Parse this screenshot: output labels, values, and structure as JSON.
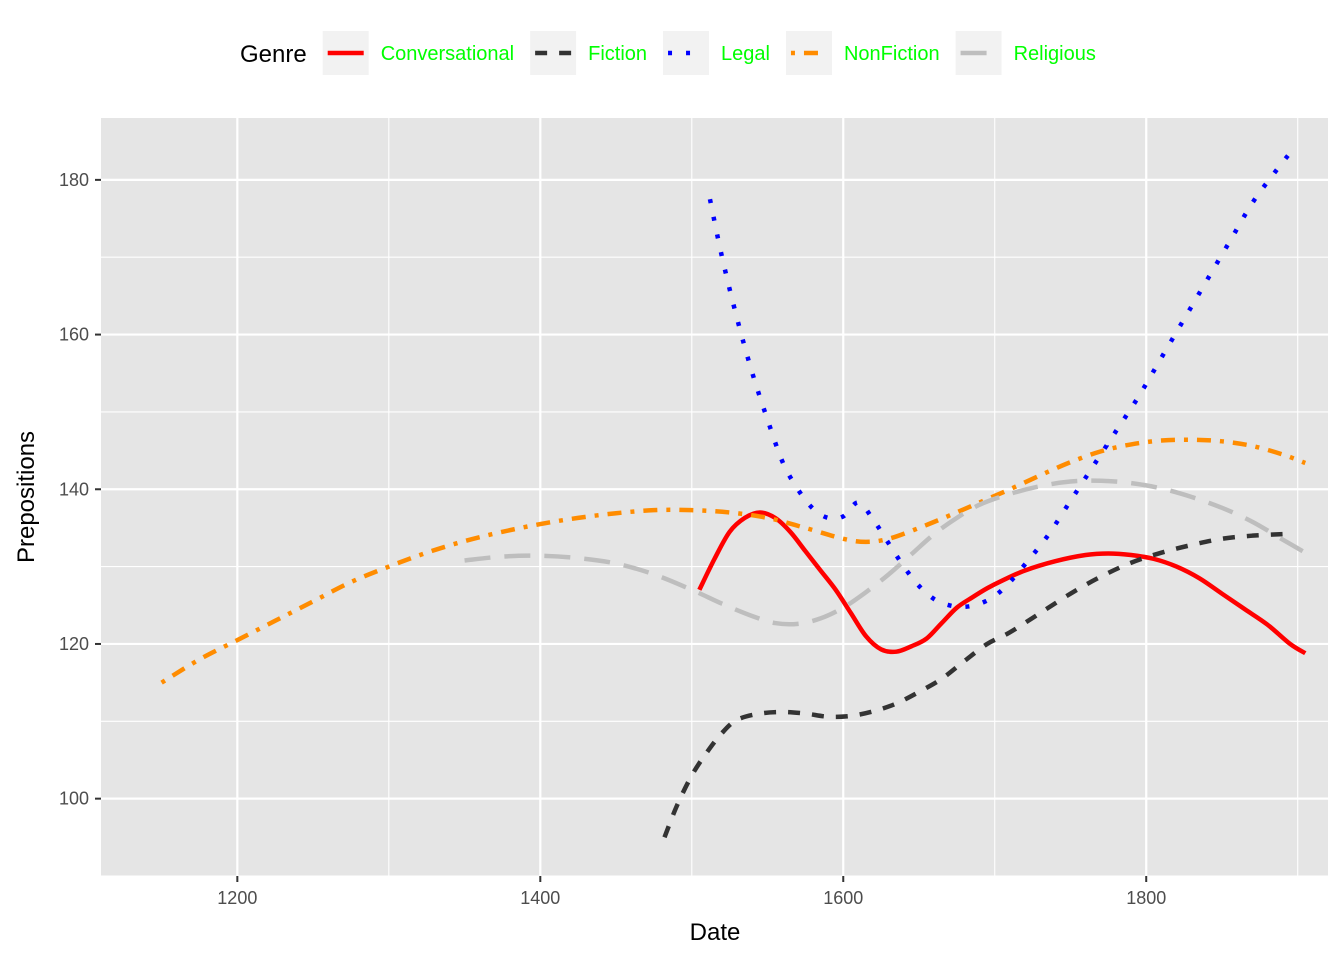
{
  "chart_data": {
    "type": "line",
    "xlabel": "Date",
    "ylabel": "Prepositions",
    "xlim": [
      1110,
      1920
    ],
    "ylim": [
      90,
      188
    ],
    "x_ticks": [
      1200,
      1400,
      1600,
      1800
    ],
    "y_ticks": [
      100,
      120,
      140,
      160,
      180
    ],
    "grid": true,
    "legend": {
      "title": "Genre",
      "position": "top",
      "label_color": "#00ff00"
    },
    "series": [
      {
        "name": "Conversational",
        "color": "#ff0000",
        "dash": "solid",
        "points": [
          [
            1505,
            127
          ],
          [
            1515,
            131
          ],
          [
            1525,
            134.5
          ],
          [
            1535,
            136.3
          ],
          [
            1545,
            137
          ],
          [
            1555,
            136.3
          ],
          [
            1565,
            134.5
          ],
          [
            1575,
            132
          ],
          [
            1585,
            129.5
          ],
          [
            1595,
            127
          ],
          [
            1605,
            124
          ],
          [
            1615,
            121
          ],
          [
            1625,
            119.3
          ],
          [
            1635,
            119
          ],
          [
            1645,
            119.7
          ],
          [
            1655,
            120.7
          ],
          [
            1665,
            122.7
          ],
          [
            1675,
            124.7
          ],
          [
            1685,
            126
          ],
          [
            1695,
            127.2
          ],
          [
            1705,
            128.2
          ],
          [
            1720,
            129.5
          ],
          [
            1740,
            130.7
          ],
          [
            1760,
            131.5
          ],
          [
            1775,
            131.7
          ],
          [
            1790,
            131.5
          ],
          [
            1805,
            131
          ],
          [
            1820,
            130
          ],
          [
            1835,
            128.5
          ],
          [
            1850,
            126.5
          ],
          [
            1865,
            124.5
          ],
          [
            1880,
            122.5
          ],
          [
            1895,
            120
          ],
          [
            1905,
            118.8
          ]
        ]
      },
      {
        "name": "Fiction",
        "color": "#333333",
        "dash": "dashed",
        "points": [
          [
            1482,
            95
          ],
          [
            1490,
            99
          ],
          [
            1500,
            103
          ],
          [
            1510,
            106
          ],
          [
            1520,
            108.5
          ],
          [
            1530,
            110.2
          ],
          [
            1545,
            111
          ],
          [
            1560,
            111.2
          ],
          [
            1575,
            111
          ],
          [
            1590,
            110.6
          ],
          [
            1605,
            110.7
          ],
          [
            1620,
            111.3
          ],
          [
            1635,
            112.3
          ],
          [
            1650,
            113.8
          ],
          [
            1665,
            115.5
          ],
          [
            1680,
            117.8
          ],
          [
            1695,
            120
          ],
          [
            1710,
            121.5
          ],
          [
            1730,
            124
          ],
          [
            1750,
            126.5
          ],
          [
            1770,
            128.7
          ],
          [
            1790,
            130.5
          ],
          [
            1810,
            131.8
          ],
          [
            1830,
            132.8
          ],
          [
            1850,
            133.6
          ],
          [
            1870,
            134
          ],
          [
            1890,
            134.2
          ]
        ]
      },
      {
        "name": "Legal",
        "color": "#0000ff",
        "dash": "dotted",
        "points": [
          [
            1512,
            177.5
          ],
          [
            1520,
            170
          ],
          [
            1530,
            162
          ],
          [
            1540,
            155
          ],
          [
            1550,
            149
          ],
          [
            1560,
            143.5
          ],
          [
            1570,
            140
          ],
          [
            1580,
            137.5
          ],
          [
            1590,
            136.3
          ],
          [
            1600,
            136.5
          ],
          [
            1610,
            138.3
          ],
          [
            1620,
            136
          ],
          [
            1630,
            133
          ],
          [
            1640,
            130
          ],
          [
            1650,
            127.5
          ],
          [
            1660,
            125.8
          ],
          [
            1670,
            125
          ],
          [
            1680,
            124.8
          ],
          [
            1690,
            125.2
          ],
          [
            1700,
            126.2
          ],
          [
            1710,
            128
          ],
          [
            1720,
            130.3
          ],
          [
            1735,
            134
          ],
          [
            1750,
            138.5
          ],
          [
            1765,
            143
          ],
          [
            1780,
            147.5
          ],
          [
            1795,
            152
          ],
          [
            1810,
            157
          ],
          [
            1825,
            162
          ],
          [
            1840,
            167
          ],
          [
            1855,
            172
          ],
          [
            1870,
            177
          ],
          [
            1885,
            181
          ],
          [
            1895,
            183.5
          ]
        ]
      },
      {
        "name": "NonFiction",
        "color": "#ff8c00",
        "dash": "dotdash",
        "points": [
          [
            1150,
            115
          ],
          [
            1175,
            118
          ],
          [
            1200,
            120.5
          ],
          [
            1225,
            123
          ],
          [
            1250,
            125.5
          ],
          [
            1275,
            128
          ],
          [
            1300,
            130
          ],
          [
            1325,
            131.8
          ],
          [
            1350,
            133.3
          ],
          [
            1375,
            134.5
          ],
          [
            1400,
            135.5
          ],
          [
            1425,
            136.3
          ],
          [
            1450,
            136.9
          ],
          [
            1475,
            137.3
          ],
          [
            1500,
            137.3
          ],
          [
            1525,
            137
          ],
          [
            1550,
            136.3
          ],
          [
            1575,
            135
          ],
          [
            1600,
            133.6
          ],
          [
            1615,
            133.2
          ],
          [
            1630,
            133.6
          ],
          [
            1650,
            135
          ],
          [
            1670,
            136.6
          ],
          [
            1690,
            138.3
          ],
          [
            1710,
            140
          ],
          [
            1730,
            141.8
          ],
          [
            1750,
            143.5
          ],
          [
            1770,
            144.9
          ],
          [
            1790,
            145.8
          ],
          [
            1810,
            146.3
          ],
          [
            1830,
            146.4
          ],
          [
            1850,
            146.2
          ],
          [
            1870,
            145.6
          ],
          [
            1890,
            144.5
          ],
          [
            1905,
            143.4
          ]
        ]
      },
      {
        "name": "Religious",
        "color": "#bebebe",
        "dash": "longdash",
        "points": [
          [
            1350,
            130.8
          ],
          [
            1375,
            131.3
          ],
          [
            1400,
            131.4
          ],
          [
            1425,
            131.1
          ],
          [
            1450,
            130.4
          ],
          [
            1475,
            129
          ],
          [
            1500,
            127
          ],
          [
            1520,
            125.2
          ],
          [
            1540,
            123.6
          ],
          [
            1555,
            122.7
          ],
          [
            1570,
            122.6
          ],
          [
            1585,
            123.3
          ],
          [
            1600,
            124.7
          ],
          [
            1615,
            126.7
          ],
          [
            1630,
            129
          ],
          [
            1645,
            131.6
          ],
          [
            1660,
            134.2
          ],
          [
            1675,
            136.3
          ],
          [
            1690,
            138
          ],
          [
            1710,
            139.4
          ],
          [
            1730,
            140.4
          ],
          [
            1750,
            141
          ],
          [
            1770,
            141.1
          ],
          [
            1790,
            140.8
          ],
          [
            1810,
            140.1
          ],
          [
            1830,
            139
          ],
          [
            1850,
            137.6
          ],
          [
            1870,
            135.8
          ],
          [
            1890,
            133.5
          ],
          [
            1905,
            131.8
          ]
        ]
      }
    ]
  }
}
